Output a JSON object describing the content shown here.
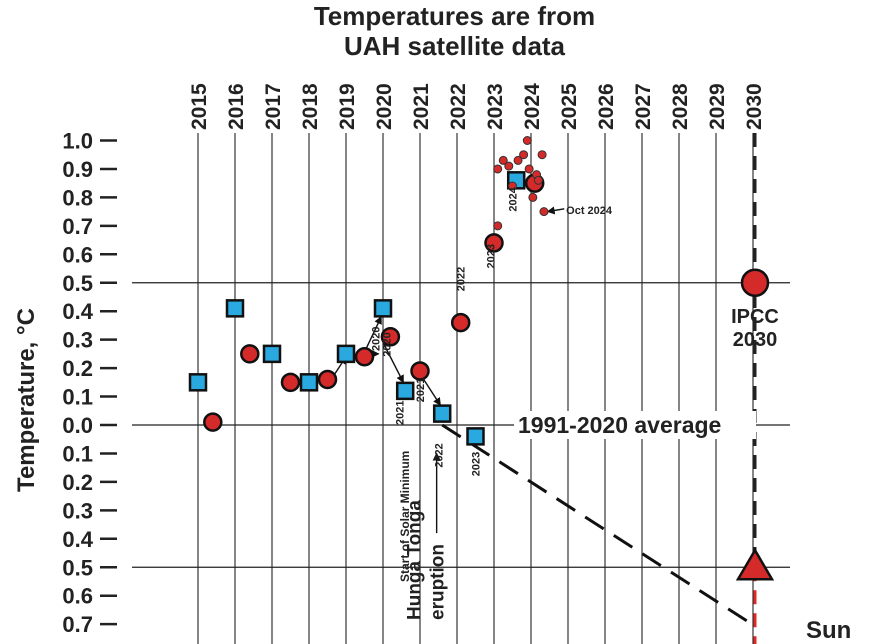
{
  "chart_data": {
    "type": "scatter",
    "title_lines": [
      "Temperatures are from",
      "UAH satellite data"
    ],
    "ylabel": "Temperature, °C",
    "ylim": [
      -0.7,
      1.0
    ],
    "xlim": [
      2015,
      2031
    ],
    "years": [
      "2015",
      "2016",
      "2017",
      "2018",
      "2019",
      "2020",
      "2021",
      "2022",
      "2023",
      "2024",
      "2025",
      "2026",
      "2027",
      "2028",
      "2029",
      "2030"
    ],
    "y_ticks": [
      {
        "value": 1.0,
        "label": "1.0"
      },
      {
        "value": 0.9,
        "label": "0.9"
      },
      {
        "value": 0.8,
        "label": "0.8"
      },
      {
        "value": 0.7,
        "label": "0.7"
      },
      {
        "value": 0.6,
        "label": "0.6"
      },
      {
        "value": 0.5,
        "label": "0.5"
      },
      {
        "value": 0.4,
        "label": "0.4"
      },
      {
        "value": 0.3,
        "label": "0.3"
      },
      {
        "value": 0.2,
        "label": "0.2"
      },
      {
        "value": 0.1,
        "label": "0.1"
      },
      {
        "value": 0.0,
        "label": "0.0"
      },
      {
        "value": -0.1,
        "label": "0.1"
      },
      {
        "value": -0.2,
        "label": "0.2"
      },
      {
        "value": -0.3,
        "label": "0.3"
      },
      {
        "value": -0.4,
        "label": "0.4"
      },
      {
        "value": -0.5,
        "label": "0.5"
      },
      {
        "value": -0.6,
        "label": "0.6"
      },
      {
        "value": -0.7,
        "label": "0.7"
      }
    ],
    "reference_lines": [
      {
        "name": "zero-line",
        "y": 0.0
      },
      {
        "name": "ipcc-line",
        "y": 0.5
      },
      {
        "name": "sun-line",
        "y": -0.5
      }
    ],
    "series": [
      {
        "name": "squares",
        "marker": "square",
        "color": "#29a9e0",
        "points": [
          [
            2015.0,
            0.15
          ],
          [
            2016.0,
            0.41
          ],
          [
            2017.0,
            0.25
          ],
          [
            2018.0,
            0.15
          ],
          [
            2019.0,
            0.25
          ],
          [
            2020.0,
            0.41
          ],
          [
            2020.6,
            0.12
          ],
          [
            2021.6,
            0.04
          ],
          [
            2022.5,
            -0.04
          ],
          [
            2023.6,
            0.86
          ]
        ]
      },
      {
        "name": "circles",
        "marker": "circle",
        "color": "#d42a2a",
        "points": [
          [
            2015.4,
            0.01
          ],
          [
            2016.4,
            0.25
          ],
          [
            2017.5,
            0.15
          ],
          [
            2018.5,
            0.16
          ],
          [
            2019.5,
            0.24
          ],
          [
            2020.2,
            0.31
          ],
          [
            2021.0,
            0.19
          ],
          [
            2022.1,
            0.36
          ],
          [
            2023.0,
            0.64
          ],
          [
            2024.1,
            0.85
          ]
        ]
      },
      {
        "name": "monthly-dots",
        "marker": "small-circle",
        "color": "#d42a2a",
        "points": [
          [
            2023.1,
            0.7
          ],
          [
            2023.1,
            0.9
          ],
          [
            2023.25,
            0.93
          ],
          [
            2023.4,
            0.91
          ],
          [
            2023.5,
            0.84
          ],
          [
            2023.65,
            0.93
          ],
          [
            2023.8,
            0.95
          ],
          [
            2023.9,
            1.0
          ],
          [
            2024.05,
            0.8
          ],
          [
            2024.15,
            0.88
          ],
          [
            2024.3,
            0.95
          ],
          [
            2024.35,
            0.75
          ],
          [
            2023.95,
            0.9
          ],
          [
            2024.2,
            0.86
          ]
        ]
      }
    ],
    "markers": [
      {
        "name": "ipcc-2030",
        "shape": "circle",
        "color": "#d42a2a",
        "x": 2030.0,
        "y": 0.5
      },
      {
        "name": "sun-triangle",
        "shape": "triangle",
        "color": "#d42a2a",
        "x": 2030.0,
        "y": -0.5
      }
    ],
    "trend_line": {
      "from": [
        2021.6,
        0.0
      ],
      "to": [
        2030.0,
        -0.7
      ]
    },
    "labels": {
      "average": "1991-2020 average",
      "ipcc_line1": "IPCC",
      "ipcc_line2": "2030",
      "sun": "Sun",
      "solar_minimum": "Start of Solar Minimum",
      "hunga_line1": "Hunga Tonga",
      "hunga_line2": "eruption",
      "oct_2024": "Oct 2024"
    },
    "point_annotations": [
      {
        "text": "2020",
        "x": 2019.8,
        "y": 0.26
      },
      {
        "text": "2020",
        "x": 2020.1,
        "y": 0.24
      },
      {
        "text": "2021",
        "x": 2020.45,
        "y": 0.0
      },
      {
        "text": "2021",
        "x": 2021.0,
        "y": 0.08
      },
      {
        "text": "2022",
        "x": 2021.5,
        "y": -0.15
      },
      {
        "text": "2022",
        "x": 2022.1,
        "y": 0.47
      },
      {
        "text": "2023",
        "x": 2022.5,
        "y": -0.18
      },
      {
        "text": "2023",
        "x": 2022.9,
        "y": 0.55
      },
      {
        "text": "2024",
        "x": 2023.5,
        "y": 0.75
      }
    ]
  }
}
